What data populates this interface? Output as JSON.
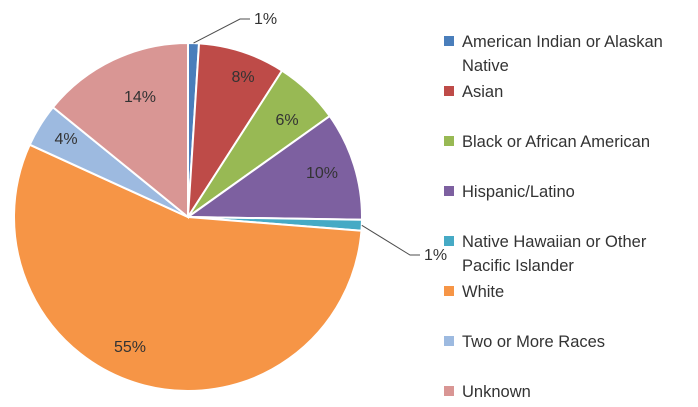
{
  "chart_data": {
    "type": "pie",
    "title": "",
    "legend_position": "right",
    "slices": [
      {
        "label": "American Indian or Alaskan Native",
        "value": 1,
        "data_label": "1%",
        "color": "#4a7ebb"
      },
      {
        "label": "Asian",
        "value": 8,
        "data_label": "8%",
        "color": "#be4b48"
      },
      {
        "label": "Black or African American",
        "value": 6,
        "data_label": "6%",
        "color": "#98b954"
      },
      {
        "label": "Hispanic/Latino",
        "value": 10,
        "data_label": "10%",
        "color": "#7d60a0"
      },
      {
        "label": "Native Hawaiian or Other Pacific Islander",
        "value": 1,
        "data_label": "1%",
        "color": "#46aac5"
      },
      {
        "label": "White",
        "value": 55,
        "data_label": "55%",
        "color": "#f69546"
      },
      {
        "label": "Two or More Races",
        "value": 4,
        "data_label": "4%",
        "color": "#9dbae0"
      },
      {
        "label": "Unknown",
        "value": 14,
        "data_label": "14%",
        "color": "#d99694"
      }
    ]
  }
}
